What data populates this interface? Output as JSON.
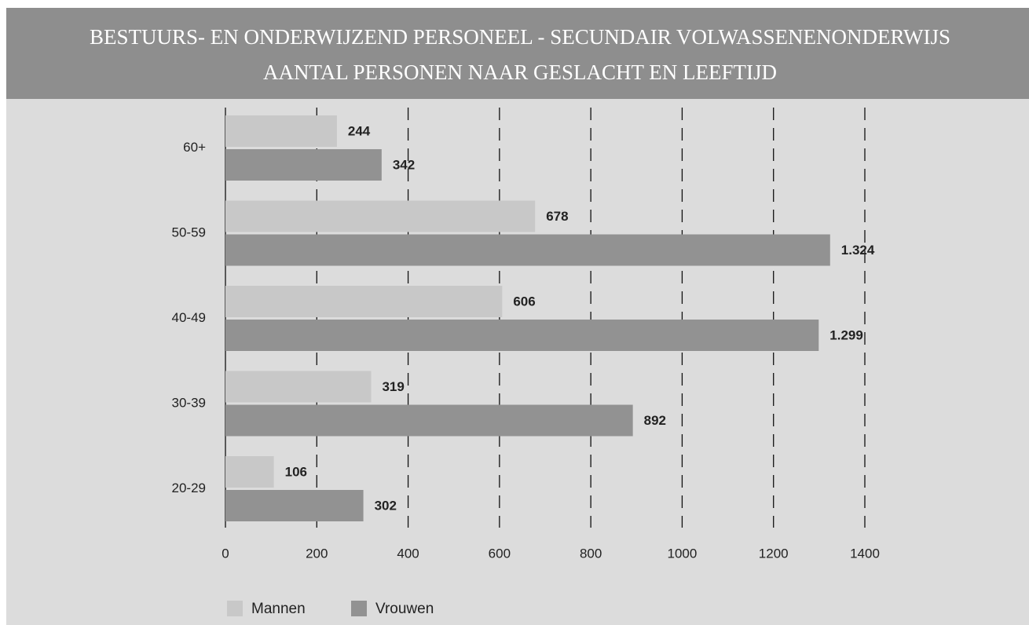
{
  "chart_data": {
    "type": "barh",
    "title": "BESTUURS- EN ONDERWIJZEND PERSONEEL - SECUNDAIR VOLWASSENENONDERWIJS",
    "subtitle": "AANTAL PERSONEN NAAR GESLACHT EN LEEFTIJD",
    "categories": [
      "60+",
      "50-59",
      "40-49",
      "30-39",
      "20-29"
    ],
    "series": [
      {
        "name": "Mannen",
        "color": "#c8c8c8",
        "values": [
          244,
          678,
          606,
          319,
          106
        ],
        "value_labels": [
          "244",
          "678",
          "606",
          "319",
          "106"
        ]
      },
      {
        "name": "Vrouwen",
        "color": "#929292",
        "values": [
          342,
          1324,
          1299,
          892,
          302
        ],
        "value_labels": [
          "342",
          "1.324",
          "1.299",
          "892",
          "302"
        ]
      }
    ],
    "xlim": [
      0,
      1400
    ],
    "xticks": [
      0,
      200,
      400,
      600,
      800,
      1000,
      1200,
      1400
    ],
    "grid": true,
    "legend": "bottom"
  }
}
